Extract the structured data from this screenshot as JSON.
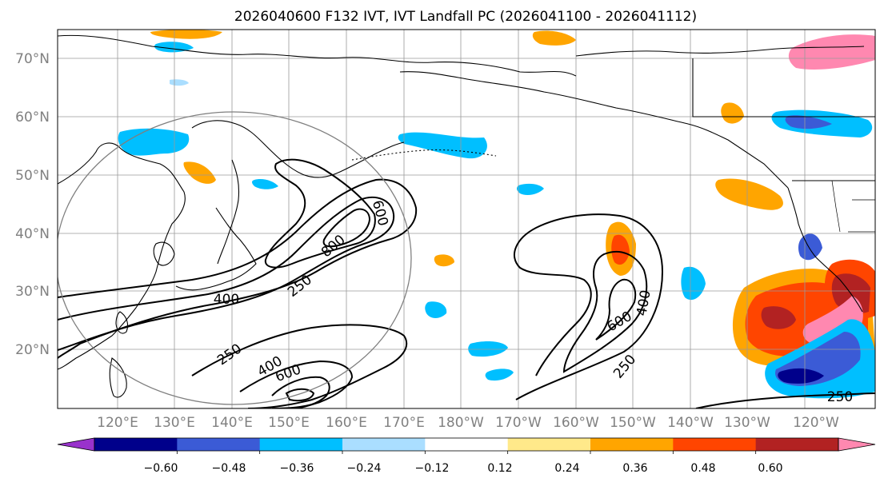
{
  "title": "2026040600 F132 IVT, IVT Landfall PC (2026041100 - 2026041112)",
  "map": {
    "lat_ticks": [
      "70°N",
      "60°N",
      "50°N",
      "40°N",
      "30°N",
      "20°N"
    ],
    "lon_ticks": [
      "120°E",
      "130°E",
      "140°E",
      "150°E",
      "160°E",
      "170°E",
      "180°W",
      "170°W",
      "160°W",
      "150°W",
      "140°W",
      "130°W",
      "120°W"
    ],
    "contour_labels": {
      "west_250": "250",
      "west_400": "400",
      "west_600": "600",
      "west_800": "800",
      "sw_250": "250",
      "sw_400": "400",
      "sw_600": "600",
      "mid_600": "600",
      "mid_400": "400",
      "mid_250": "250",
      "east_250": "250"
    }
  },
  "colorbar": {
    "ticks": [
      "−0.60",
      "−0.48",
      "−0.36",
      "−0.24",
      "−0.12",
      "0.12",
      "0.24",
      "0.36",
      "0.48",
      "0.60"
    ],
    "colors": [
      "#9932cc",
      "#00008b",
      "#3b5bd6",
      "#00bfff",
      "#aadeff",
      "#ffffff",
      "#ffe98a",
      "#ffa500",
      "#ff4500",
      "#b22222",
      "#ff88b0"
    ]
  }
}
